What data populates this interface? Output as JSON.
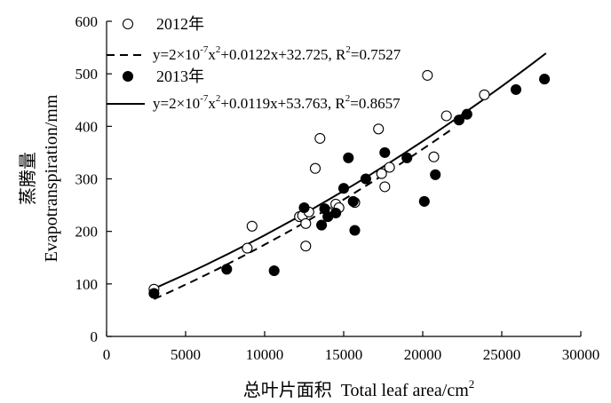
{
  "chart_data": {
    "type": "scatter",
    "xlabel_cn": "总叶片面积",
    "xlabel_en": "Total leaf area/cm",
    "xlabel_sup": "2",
    "ylabel_cn": "蒸腾量",
    "ylabel_en": "Evapotranspiration/mm",
    "xlim": [
      0,
      30000
    ],
    "ylim": [
      0,
      600
    ],
    "xticks": [
      0,
      5000,
      10000,
      15000,
      20000,
      25000,
      30000
    ],
    "yticks": [
      0,
      100,
      200,
      300,
      400,
      500,
      600
    ],
    "grid": false,
    "legend_position": "top-left",
    "series": [
      {
        "name": "2012年",
        "marker": "open-circle",
        "line_style": "dashed",
        "fit": {
          "a": 2e-07,
          "b": 0.0122,
          "c": 32.725,
          "x_range": [
            3000,
            22000
          ]
        },
        "equation": {
          "p1": "y=2×10",
          "p1_sup": "-7",
          "p2": "x",
          "p2_sup": "2",
          "p3": "+0.0122x+32.725, R",
          "p3_sup": "2",
          "p4": "=0.7527"
        },
        "points": [
          [
            3000,
            90
          ],
          [
            8900,
            168
          ],
          [
            9200,
            210
          ],
          [
            12200,
            228
          ],
          [
            12400,
            230
          ],
          [
            12600,
            215
          ],
          [
            12600,
            172
          ],
          [
            12800,
            237
          ],
          [
            13200,
            320
          ],
          [
            13500,
            377
          ],
          [
            14000,
            237
          ],
          [
            14500,
            252
          ],
          [
            14700,
            245
          ],
          [
            15700,
            255
          ],
          [
            17200,
            395
          ],
          [
            17400,
            310
          ],
          [
            17600,
            285
          ],
          [
            17900,
            322
          ],
          [
            20300,
            497
          ],
          [
            20700,
            342
          ],
          [
            21500,
            420
          ],
          [
            23900,
            460
          ]
        ]
      },
      {
        "name": "2013年",
        "marker": "filled-circle",
        "line_style": "solid",
        "fit": {
          "a": 2e-07,
          "b": 0.0119,
          "c": 53.763,
          "x_range": [
            3000,
            27800
          ]
        },
        "equation": {
          "p1": "y=2×10",
          "p1_sup": "-7",
          "p2": "x",
          "p2_sup": "2",
          "p3": "+0.0119x+53.763, R",
          "p3_sup": "2",
          "p4": "=0.8657"
        },
        "points": [
          [
            3000,
            82
          ],
          [
            7600,
            128
          ],
          [
            10600,
            125
          ],
          [
            12500,
            245
          ],
          [
            13600,
            212
          ],
          [
            13800,
            243
          ],
          [
            14000,
            228
          ],
          [
            14500,
            235
          ],
          [
            15000,
            282
          ],
          [
            15300,
            340
          ],
          [
            15600,
            257
          ],
          [
            15700,
            202
          ],
          [
            16400,
            300
          ],
          [
            17600,
            350
          ],
          [
            19000,
            340
          ],
          [
            20100,
            257
          ],
          [
            20800,
            308
          ],
          [
            22300,
            412
          ],
          [
            22800,
            423
          ],
          [
            25900,
            470
          ],
          [
            27700,
            490
          ]
        ]
      }
    ]
  }
}
